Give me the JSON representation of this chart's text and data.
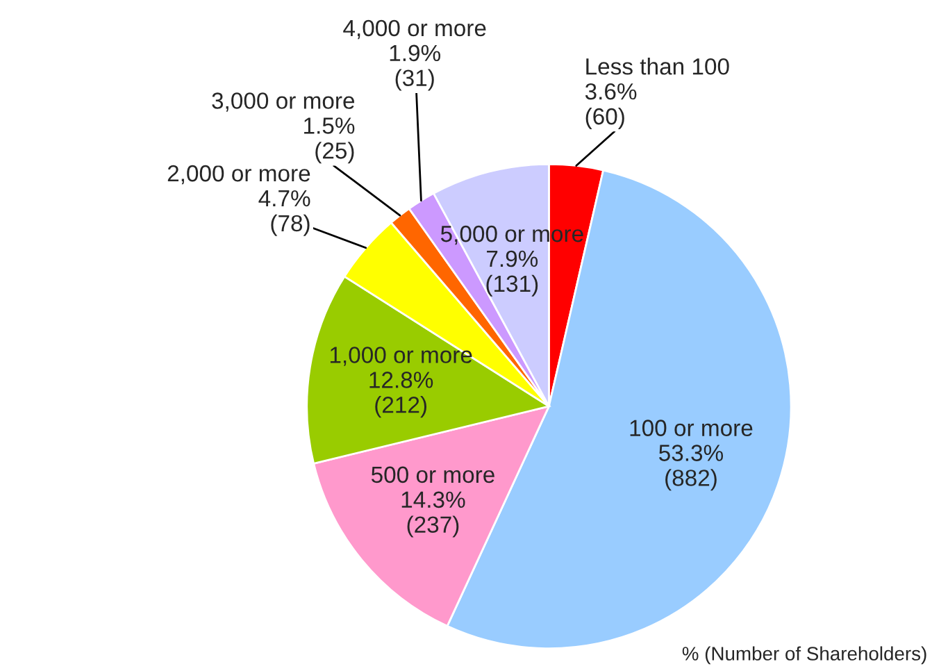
{
  "chart_data": {
    "type": "pie",
    "categories": [
      "Less than 100",
      "100 or more",
      "500 or more",
      "1,000 or more",
      "2,000 or more",
      "3,000 or more",
      "4,000 or more",
      "5,000 or more"
    ],
    "values": [
      3.6,
      53.3,
      14.3,
      12.8,
      4.7,
      1.5,
      1.9,
      7.9
    ],
    "colors": [
      "#ff0000",
      "#99ccff",
      "#ff99cc",
      "#99cc00",
      "#ffff00",
      "#ff6600",
      "#cc99ff",
      "#ccccff"
    ],
    "value_labels": [
      "3.6%\n(60)",
      "53.3%\n(882)",
      "14.3%\n(237)",
      "12.8%\n(212)",
      "4.7%\n(78)",
      "1.5%\n(25)",
      "1.9%\n(31)",
      "7.9%\n(131)"
    ],
    "annotations": [
      "% (Number of Shareholders)"
    ]
  }
}
